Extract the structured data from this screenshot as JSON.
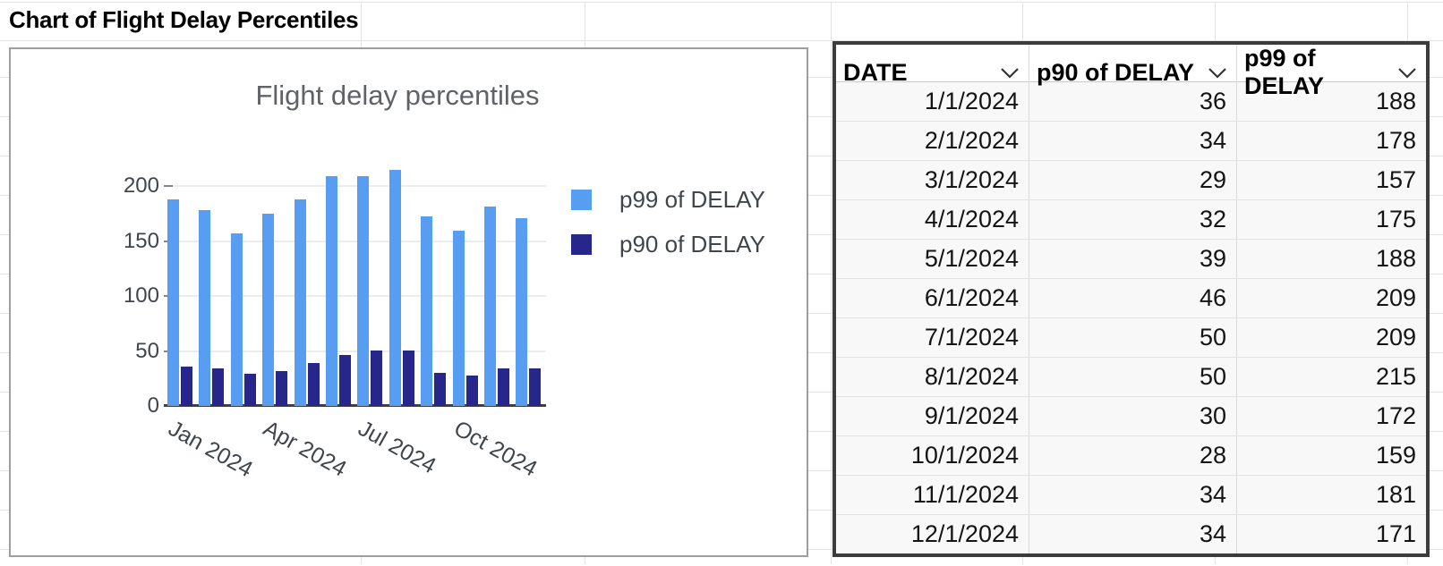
{
  "sheet": {
    "title_cell": "Chart of Flight Delay Percentiles"
  },
  "chart_data": {
    "type": "bar",
    "title": "Flight delay percentiles",
    "categories": [
      "Jan 2024",
      "Feb 2024",
      "Mar 2024",
      "Apr 2024",
      "May 2024",
      "Jun 2024",
      "Jul 2024",
      "Aug 2024",
      "Sep 2024",
      "Oct 2024",
      "Nov 2024",
      "Dec 2024"
    ],
    "series": [
      {
        "name": "p99 of DELAY",
        "color": "#579df1",
        "values": [
          188,
          178,
          157,
          175,
          188,
          209,
          209,
          215,
          172,
          159,
          181,
          171
        ]
      },
      {
        "name": "p90 of DELAY",
        "color": "#26268b",
        "values": [
          36,
          34,
          29,
          32,
          39,
          46,
          50,
          50,
          30,
          28,
          34,
          34
        ]
      }
    ],
    "yticks": [
      0,
      50,
      100,
      150,
      200
    ],
    "ylim": [
      0,
      220
    ],
    "x_ticks": [
      {
        "index": 0,
        "label": "Jan 2024"
      },
      {
        "index": 3,
        "label": "Apr 2024"
      },
      {
        "index": 6,
        "label": "Jul 2024"
      },
      {
        "index": 9,
        "label": "Oct 2024"
      }
    ],
    "legend_position": "right",
    "grid": true
  },
  "table": {
    "columns": [
      {
        "label": "DATE"
      },
      {
        "label": "p90 of DELAY"
      },
      {
        "label": "p99 of DELAY"
      }
    ],
    "rows": [
      [
        "1/1/2024",
        "36",
        "188"
      ],
      [
        "2/1/2024",
        "34",
        "178"
      ],
      [
        "3/1/2024",
        "29",
        "157"
      ],
      [
        "4/1/2024",
        "32",
        "175"
      ],
      [
        "5/1/2024",
        "39",
        "188"
      ],
      [
        "6/1/2024",
        "46",
        "209"
      ],
      [
        "7/1/2024",
        "50",
        "209"
      ],
      [
        "8/1/2024",
        "50",
        "215"
      ],
      [
        "9/1/2024",
        "30",
        "172"
      ],
      [
        "10/1/2024",
        "28",
        "159"
      ],
      [
        "11/1/2024",
        "34",
        "181"
      ],
      [
        "12/1/2024",
        "34",
        "171"
      ]
    ]
  }
}
